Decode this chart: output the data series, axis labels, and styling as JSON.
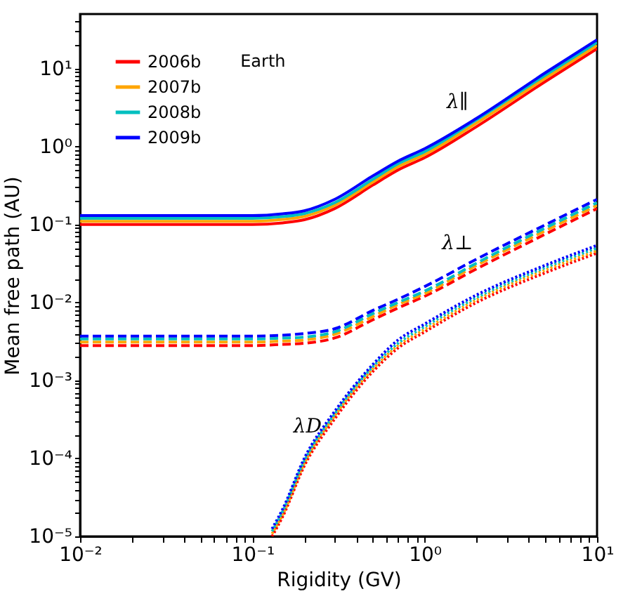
{
  "chart_data": {
    "type": "line",
    "xlabel": "Rigidity (GV)",
    "ylabel": "Mean free path (AU)",
    "log": "xy",
    "legend": "top left",
    "grid": false,
    "annotations": [
      "Earth",
      "λ∥",
      "λ⊥",
      "λD"
    ],
    "xlim": [
      0.01,
      10
    ],
    "ylim": [
      1e-05,
      50
    ],
    "xticks": [
      {
        "value": 0.01,
        "label": "10⁻²"
      },
      {
        "value": 0.1,
        "label": "10⁻¹"
      },
      {
        "value": 1,
        "label": "10⁰"
      },
      {
        "value": 10,
        "label": "10¹"
      },
      {
        "value": 0.02,
        "label": null
      },
      {
        "value": 0.03,
        "label": null
      },
      {
        "value": 0.04,
        "label": null
      },
      {
        "value": 0.05,
        "label": null
      },
      {
        "value": 0.06,
        "label": null
      },
      {
        "value": 0.07,
        "label": null
      },
      {
        "value": 0.08,
        "label": null
      },
      {
        "value": 0.09,
        "label": null
      },
      {
        "value": 0.2,
        "label": null
      },
      {
        "value": 0.3,
        "label": null
      },
      {
        "value": 0.4,
        "label": null
      },
      {
        "value": 0.5,
        "label": null
      },
      {
        "value": 0.6,
        "label": null
      },
      {
        "value": 0.7,
        "label": null
      },
      {
        "value": 0.8,
        "label": null
      },
      {
        "value": 0.9,
        "label": null
      },
      {
        "value": 2,
        "label": null
      },
      {
        "value": 3,
        "label": null
      },
      {
        "value": 4,
        "label": null
      },
      {
        "value": 5,
        "label": null
      },
      {
        "value": 6,
        "label": null
      },
      {
        "value": 7,
        "label": null
      },
      {
        "value": 8,
        "label": null
      },
      {
        "value": 9,
        "label": null
      }
    ],
    "yticks": [
      {
        "value": 1e-05,
        "label": "10⁻⁵"
      },
      {
        "value": 0.0001,
        "label": "10⁻⁴"
      },
      {
        "value": 0.001,
        "label": "10⁻³"
      },
      {
        "value": 0.01,
        "label": "10⁻²"
      },
      {
        "value": 0.1,
        "label": "10⁻¹"
      },
      {
        "value": 1,
        "label": "10⁰"
      },
      {
        "value": 10,
        "label": "10¹"
      },
      {
        "value": 2e-05,
        "label": null
      },
      {
        "value": 3e-05,
        "label": null
      },
      {
        "value": 4e-05,
        "label": null
      },
      {
        "value": 5e-05,
        "label": null
      },
      {
        "value": 6e-05,
        "label": null
      },
      {
        "value": 7e-05,
        "label": null
      },
      {
        "value": 8e-05,
        "label": null
      },
      {
        "value": 9e-05,
        "label": null
      },
      {
        "value": 0.0002,
        "label": null
      },
      {
        "value": 0.0003,
        "label": null
      },
      {
        "value": 0.0004,
        "label": null
      },
      {
        "value": 0.0005,
        "label": null
      },
      {
        "value": 0.0006,
        "label": null
      },
      {
        "value": 0.0007,
        "label": null
      },
      {
        "value": 0.0008,
        "label": null
      },
      {
        "value": 0.0009,
        "label": null
      },
      {
        "value": 0.002,
        "label": null
      },
      {
        "value": 0.003,
        "label": null
      },
      {
        "value": 0.004,
        "label": null
      },
      {
        "value": 0.005,
        "label": null
      },
      {
        "value": 0.006,
        "label": null
      },
      {
        "value": 0.007,
        "label": null
      },
      {
        "value": 0.008,
        "label": null
      },
      {
        "value": 0.009,
        "label": null
      },
      {
        "value": 0.02,
        "label": null
      },
      {
        "value": 0.03,
        "label": null
      },
      {
        "value": 0.04,
        "label": null
      },
      {
        "value": 0.05,
        "label": null
      },
      {
        "value": 0.06,
        "label": null
      },
      {
        "value": 0.07,
        "label": null
      },
      {
        "value": 0.08,
        "label": null
      },
      {
        "value": 0.09,
        "label": null
      },
      {
        "value": 0.2,
        "label": null
      },
      {
        "value": 0.3,
        "label": null
      },
      {
        "value": 0.4,
        "label": null
      },
      {
        "value": 0.5,
        "label": null
      },
      {
        "value": 0.6,
        "label": null
      },
      {
        "value": 0.7,
        "label": null
      },
      {
        "value": 0.8,
        "label": null
      },
      {
        "value": 0.9,
        "label": null
      },
      {
        "value": 2,
        "label": null
      },
      {
        "value": 3,
        "label": null
      },
      {
        "value": 4,
        "label": null
      },
      {
        "value": 5,
        "label": null
      },
      {
        "value": 6,
        "label": null
      },
      {
        "value": 7,
        "label": null
      },
      {
        "value": 8,
        "label": null
      },
      {
        "value": 9,
        "label": null
      },
      {
        "value": 20,
        "label": null
      },
      {
        "value": 30,
        "label": null
      },
      {
        "value": 40,
        "label": null
      }
    ],
    "x": [
      0.01,
      0.1,
      0.15,
      0.2,
      0.3,
      0.5,
      0.7,
      1,
      2,
      5,
      10
    ],
    "series": [
      {
        "name": "2006b",
        "color": "#ff0000",
        "line_style": "solid",
        "values": [
          0.1,
          0.1,
          0.105,
          0.115,
          0.16,
          0.32,
          0.5,
          0.72,
          1.8,
          6.8,
          18
        ]
      },
      {
        "name": "2007b",
        "color": "#ffa500",
        "line_style": "solid",
        "values": [
          0.11,
          0.11,
          0.116,
          0.127,
          0.176,
          0.35,
          0.55,
          0.79,
          2.0,
          7.5,
          19.8
        ]
      },
      {
        "name": "2008b",
        "color": "#00bfbf",
        "line_style": "solid",
        "values": [
          0.12,
          0.12,
          0.126,
          0.138,
          0.19,
          0.38,
          0.6,
          0.86,
          2.2,
          8.2,
          21.6
        ]
      },
      {
        "name": "2009b",
        "color": "#0000ff",
        "line_style": "solid",
        "values": [
          0.13,
          0.13,
          0.137,
          0.15,
          0.21,
          0.42,
          0.65,
          0.94,
          2.3,
          8.8,
          23.4
        ]
      },
      {
        "color": "#ff0000",
        "line_style": "dashed",
        "values": [
          0.0028,
          0.0028,
          0.0029,
          0.003,
          0.0035,
          0.006,
          0.0085,
          0.012,
          0.027,
          0.075,
          0.16
        ]
      },
      {
        "color": "#ffa500",
        "line_style": "dashed",
        "values": [
          0.0031,
          0.0031,
          0.0032,
          0.0033,
          0.0039,
          0.0066,
          0.0094,
          0.013,
          0.03,
          0.083,
          0.176
        ]
      },
      {
        "color": "#00bfbf",
        "line_style": "dashed",
        "values": [
          0.0034,
          0.0034,
          0.0035,
          0.0036,
          0.0042,
          0.0072,
          0.01,
          0.014,
          0.032,
          0.09,
          0.19
        ]
      },
      {
        "color": "#0000ff",
        "line_style": "dashed",
        "values": [
          0.0037,
          0.0037,
          0.0038,
          0.004,
          0.0046,
          0.0079,
          0.011,
          0.016,
          0.036,
          0.099,
          0.21
        ]
      },
      {
        "color": "#ff0000",
        "line_style": "dotted",
        "x": [
          0.13,
          0.15,
          0.2,
          0.3,
          0.5,
          0.7,
          1,
          2,
          5,
          10
        ],
        "values": [
          1e-05,
          1.8e-05,
          8e-05,
          0.00032,
          0.0013,
          0.0026,
          0.0042,
          0.01,
          0.024,
          0.043
        ]
      },
      {
        "color": "#ffa500",
        "line_style": "dotted",
        "x": [
          0.13,
          0.15,
          0.2,
          0.3,
          0.5,
          0.7,
          1,
          2,
          5,
          10
        ],
        "values": [
          1.08e-05,
          1.9e-05,
          8.6e-05,
          0.00035,
          0.0014,
          0.0028,
          0.0045,
          0.0108,
          0.026,
          0.046
        ]
      },
      {
        "color": "#00bfbf",
        "line_style": "dotted",
        "x": [
          0.13,
          0.15,
          0.2,
          0.3,
          0.5,
          0.7,
          1,
          2,
          5,
          10
        ],
        "values": [
          1.16e-05,
          2.1e-05,
          9.3e-05,
          0.00037,
          0.0015,
          0.003,
          0.0049,
          0.0116,
          0.028,
          0.05
        ]
      },
      {
        "color": "#0000ff",
        "line_style": "dotted",
        "x": [
          0.13,
          0.15,
          0.2,
          0.3,
          0.5,
          0.7,
          1,
          2,
          5,
          10
        ],
        "values": [
          1.25e-05,
          2.25e-05,
          0.0001,
          0.0004,
          0.0016,
          0.0033,
          0.0053,
          0.0125,
          0.03,
          0.054
        ]
      }
    ]
  }
}
